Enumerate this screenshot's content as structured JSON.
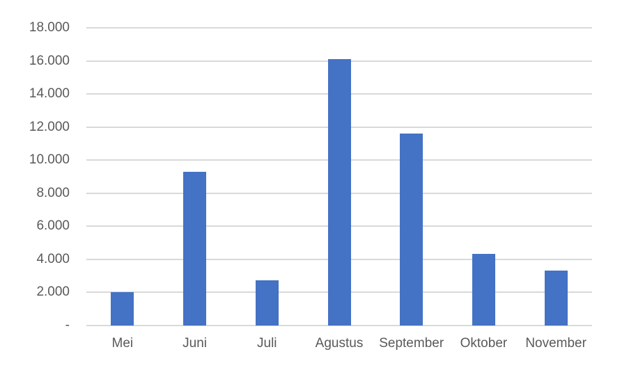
{
  "chart_data": {
    "type": "bar",
    "title": "",
    "xlabel": "",
    "ylabel": "",
    "categories": [
      "Mei",
      "Juni",
      "Juli",
      "Agustus",
      "September",
      "Oktober",
      "November"
    ],
    "values": [
      2000,
      9300,
      2700,
      16100,
      11600,
      4300,
      3300
    ],
    "ylim": [
      0,
      18000
    ],
    "ytick_interval": 2000,
    "ytick_labels": [
      "-",
      "2.000",
      "4.000",
      "6.000",
      "8.000",
      "10.000",
      "12.000",
      "14.000",
      "16.000",
      "18.000"
    ],
    "grid": true,
    "legend": false,
    "colors": {
      "bar": "#4472C4",
      "gridline": "#D9D9D9",
      "axis_line": "#D9D9D9",
      "tick_text": "#595959",
      "background": "#FFFFFF"
    }
  }
}
